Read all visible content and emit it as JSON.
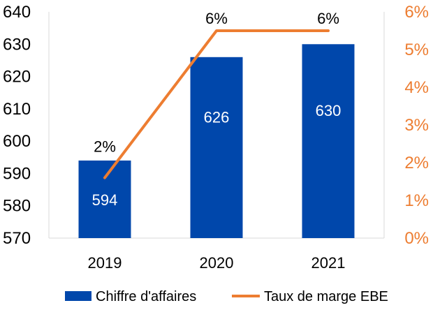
{
  "chart_data": {
    "type": "bar",
    "categories": [
      "2019",
      "2020",
      "2021"
    ],
    "series": [
      {
        "name": "Chiffre d'affaires",
        "type": "bar",
        "axis": "left",
        "values": [
          594,
          626,
          630
        ],
        "labels": [
          "594",
          "626",
          "630"
        ],
        "color": "#0047AB"
      },
      {
        "name": "Taux de marge EBE",
        "type": "line",
        "axis": "right",
        "values": [
          1.6,
          5.5,
          5.5
        ],
        "labels": [
          "2%",
          "6%",
          "6%"
        ],
        "color": "#ED7D31"
      }
    ],
    "y_left": {
      "min": 570,
      "max": 640,
      "ticks": [
        "570",
        "580",
        "590",
        "600",
        "610",
        "620",
        "630",
        "640"
      ]
    },
    "y_right": {
      "min": 0,
      "max": 6,
      "ticks": [
        "0%",
        "1%",
        "2%",
        "3%",
        "4%",
        "5%",
        "6%"
      ],
      "color": "#ED7D31"
    },
    "title": "",
    "xlabel": "",
    "ylabel": "",
    "grid": false,
    "legend_position": "bottom"
  }
}
